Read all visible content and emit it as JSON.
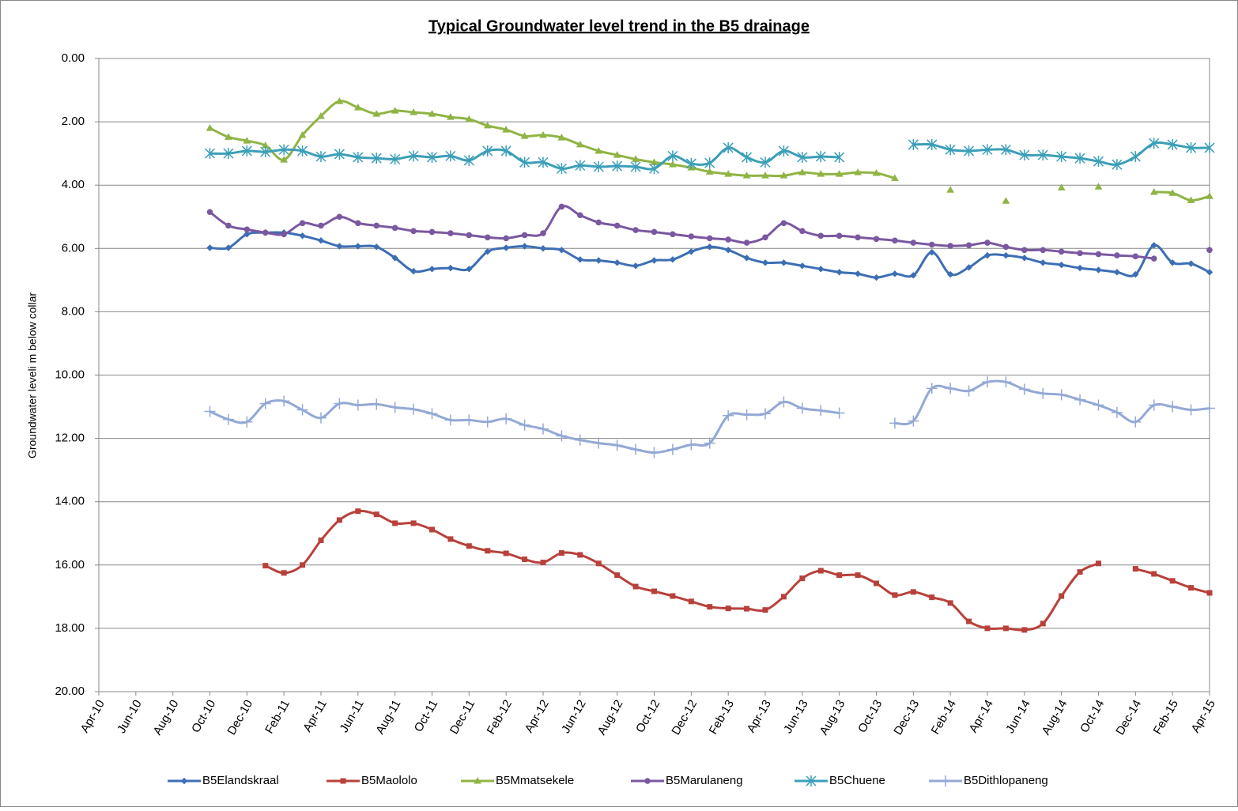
{
  "chart_data": {
    "type": "line",
    "title": "Typical Groundwater level trend in the B5 drainage",
    "y_label": "Groundwater leveli m below collar",
    "categories": [
      "Apr-10",
      null,
      "Jun-10",
      null,
      "Aug-10",
      null,
      "Oct-10",
      null,
      "Dec-10",
      null,
      "Feb-11",
      null,
      "Apr-11",
      null,
      "Jun-11",
      null,
      "Aug-11",
      null,
      "Oct-11",
      null,
      "Dec-11",
      null,
      "Feb-12",
      null,
      "Apr-12",
      null,
      "Jun-12",
      null,
      "Aug-12",
      null,
      "Oct-12",
      null,
      "Dec-12",
      null,
      "Feb-13",
      null,
      "Apr-13",
      null,
      "Jun-13",
      null,
      "Aug-13",
      null,
      "Oct-13",
      null,
      "Dec-13",
      null,
      "Feb-14",
      null,
      "Apr-14",
      null,
      "Jun-14",
      null,
      "Aug-14",
      null,
      "Oct-14",
      null,
      "Dec-14",
      null,
      "Feb-15",
      null,
      "Apr-15"
    ],
    "ylim": [
      0,
      20
    ],
    "y_inverted": true,
    "yticks": [
      {
        "value": 0,
        "label": "0.00"
      },
      {
        "value": 2,
        "label": "2.00"
      },
      {
        "value": 4,
        "label": "4.00"
      },
      {
        "value": 6,
        "label": "6.00"
      },
      {
        "value": 8,
        "label": "8.00"
      },
      {
        "value": 10,
        "label": "10.00"
      },
      {
        "value": 12,
        "label": "12.00"
      },
      {
        "value": 14,
        "label": "14.00"
      },
      {
        "value": 16,
        "label": "16.00"
      },
      {
        "value": 18,
        "label": "18.00"
      },
      {
        "value": 20,
        "label": "20.00"
      }
    ],
    "grid": true,
    "legend": "bottom",
    "series": [
      {
        "name": "B5Elandskraal",
        "color": "#3d6eb4",
        "marker": "diamond",
        "values": [
          null,
          null,
          null,
          null,
          null,
          null,
          5.98,
          5.98,
          5.55,
          5.5,
          5.5,
          5.6,
          5.75,
          5.93,
          5.93,
          5.95,
          6.3,
          6.72,
          6.65,
          6.62,
          6.65,
          6.1,
          5.98,
          5.93,
          6.0,
          6.05,
          6.35,
          6.38,
          6.45,
          6.55,
          6.38,
          6.35,
          6.1,
          5.95,
          6.05,
          6.3,
          6.45,
          6.45,
          6.55,
          6.65,
          6.75,
          6.8,
          6.92,
          6.8,
          6.85,
          6.12,
          6.82,
          6.6,
          6.22,
          6.22,
          6.3,
          6.45,
          6.52,
          6.62,
          6.68,
          6.75,
          6.82,
          5.9,
          6.45,
          6.48,
          6.75
        ]
      },
      {
        "name": "B5Maololo",
        "color": "#b8413b",
        "marker": "square",
        "values": [
          null,
          null,
          null,
          null,
          null,
          null,
          null,
          null,
          null,
          16.02,
          16.25,
          16.0,
          15.22,
          14.58,
          14.3,
          14.4,
          14.68,
          14.68,
          14.88,
          15.18,
          15.4,
          15.55,
          15.63,
          15.82,
          15.92,
          15.62,
          15.68,
          15.95,
          16.32,
          16.68,
          16.83,
          16.98,
          17.15,
          17.32,
          17.37,
          17.38,
          17.42,
          17.0,
          16.42,
          16.18,
          16.32,
          16.32,
          16.58,
          16.95,
          16.85,
          17.02,
          17.2,
          17.78,
          18.0,
          18.0,
          18.05,
          17.85,
          16.98,
          16.22,
          15.95,
          null,
          16.12,
          16.28,
          16.5,
          16.72,
          16.88
        ]
      },
      {
        "name": "B5Mmatsekele",
        "color": "#8fb445",
        "marker": "triangle",
        "values": [
          null,
          null,
          null,
          null,
          null,
          null,
          2.2,
          2.48,
          2.6,
          2.75,
          3.2,
          2.42,
          1.82,
          1.35,
          1.55,
          1.75,
          1.65,
          1.7,
          1.75,
          1.85,
          1.92,
          2.12,
          2.25,
          2.45,
          2.42,
          2.5,
          2.72,
          2.92,
          3.05,
          3.18,
          3.28,
          3.35,
          3.45,
          3.58,
          3.65,
          3.7,
          3.7,
          3.7,
          3.6,
          3.65,
          3.65,
          3.6,
          3.62,
          3.78,
          null,
          null,
          4.15,
          null,
          null,
          4.5,
          null,
          null,
          4.08,
          null,
          4.05,
          null,
          null,
          4.22,
          4.25,
          4.48,
          4.35
        ]
      },
      {
        "name": "B5Marulaneng",
        "color": "#7a58a0",
        "marker": "circle",
        "values": [
          null,
          null,
          null,
          null,
          null,
          null,
          4.85,
          5.28,
          5.4,
          5.5,
          5.55,
          5.2,
          5.28,
          5.0,
          5.2,
          5.28,
          5.35,
          5.45,
          5.48,
          5.52,
          5.58,
          5.65,
          5.68,
          5.58,
          5.52,
          4.68,
          4.95,
          5.18,
          5.28,
          5.42,
          5.48,
          5.55,
          5.62,
          5.68,
          5.72,
          5.82,
          5.65,
          5.2,
          5.45,
          5.6,
          5.6,
          5.65,
          5.7,
          5.75,
          5.82,
          5.88,
          5.92,
          5.9,
          5.82,
          5.95,
          6.05,
          6.05,
          6.1,
          6.15,
          6.18,
          6.22,
          6.25,
          6.32,
          null,
          null,
          6.05
        ]
      },
      {
        "name": "B5Chuene",
        "color": "#3b9fb8",
        "marker": "asterisk",
        "values": [
          null,
          null,
          null,
          null,
          null,
          null,
          3.0,
          3.0,
          2.92,
          2.95,
          2.88,
          2.92,
          3.1,
          3.02,
          3.12,
          3.15,
          3.18,
          3.08,
          3.12,
          3.08,
          3.22,
          2.92,
          2.92,
          3.28,
          3.28,
          3.48,
          3.38,
          3.42,
          3.4,
          3.42,
          3.48,
          3.08,
          3.32,
          3.3,
          2.82,
          3.12,
          3.28,
          2.92,
          3.12,
          3.1,
          3.12,
          null,
          null,
          null,
          2.72,
          2.72,
          2.88,
          2.92,
          2.88,
          2.88,
          3.05,
          3.05,
          3.1,
          3.15,
          3.25,
          3.35,
          3.1,
          2.68,
          2.72,
          2.82,
          2.82
        ]
      },
      {
        "name": "B5Dithlopaneng",
        "color": "#93a9d5",
        "marker": "plus",
        "values": [
          null,
          null,
          null,
          null,
          null,
          null,
          11.15,
          11.4,
          11.48,
          10.9,
          10.82,
          11.1,
          11.35,
          10.9,
          10.95,
          10.92,
          11.02,
          11.08,
          11.22,
          11.42,
          11.42,
          11.48,
          11.38,
          11.58,
          11.7,
          11.92,
          12.05,
          12.15,
          12.22,
          12.35,
          12.45,
          12.35,
          12.2,
          12.15,
          11.28,
          11.25,
          11.22,
          10.85,
          11.05,
          11.12,
          11.2,
          null,
          null,
          11.52,
          11.45,
          10.42,
          10.42,
          10.5,
          10.22,
          10.22,
          10.45,
          10.58,
          10.62,
          10.78,
          10.95,
          11.18,
          11.48,
          10.95,
          11.0,
          11.1,
          11.05
        ]
      }
    ]
  }
}
